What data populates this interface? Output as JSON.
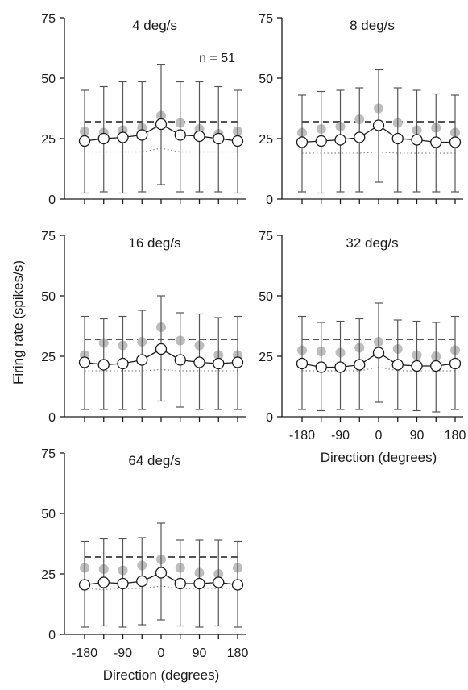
{
  "chart_data": [
    {
      "type": "line",
      "title": "4 deg/s",
      "annotation": "n = 51",
      "x": [
        -180,
        -135,
        -90,
        -45,
        0,
        45,
        90,
        135,
        180
      ],
      "ylim": [
        0,
        75
      ],
      "yticks": [
        0,
        25,
        50,
        75
      ],
      "series": [
        {
          "values": [
            24,
            25,
            25.5,
            26.5,
            31,
            26.5,
            26,
            25,
            24
          ],
          "err_low": [
            2.5,
            3,
            2.5,
            3,
            6,
            3,
            3,
            3,
            2.5
          ],
          "err_high": [
            45,
            46.5,
            48.5,
            48.5,
            55.5,
            48.5,
            48.5,
            46.5,
            45
          ]
        },
        {
          "values": [
            28,
            27.5,
            28.5,
            29.5,
            34.5,
            31.5,
            29,
            27,
            28
          ]
        },
        {
          "values": [
            32,
            32,
            32,
            32,
            32,
            32,
            32,
            32,
            32
          ]
        },
        {
          "values": [
            19.5,
            19.5,
            19.5,
            19.5,
            21,
            19.5,
            19.5,
            19.5,
            19.5
          ]
        }
      ]
    },
    {
      "type": "line",
      "title": "8 deg/s",
      "x": [
        -180,
        -135,
        -90,
        -45,
        0,
        45,
        90,
        135,
        180
      ],
      "ylim": [
        0,
        75
      ],
      "yticks": [
        0,
        25,
        50,
        75
      ],
      "series": [
        {
          "values": [
            23.5,
            24,
            24.5,
            25.5,
            30.5,
            25,
            24.5,
            23.5,
            23.5
          ],
          "err_low": [
            3,
            2.5,
            3,
            3,
            7,
            3,
            3,
            3,
            3
          ],
          "err_high": [
            43,
            44.5,
            45,
            46,
            53.5,
            46,
            45,
            43.5,
            43
          ]
        },
        {
          "values": [
            27.5,
            29,
            30,
            33,
            37.5,
            31.5,
            28.5,
            29.5,
            27.5
          ]
        },
        {
          "values": [
            32,
            32,
            32,
            32,
            32,
            32,
            32,
            32,
            32
          ]
        },
        {
          "values": [
            19,
            19,
            19,
            19,
            19.5,
            19,
            19,
            19,
            19
          ]
        }
      ]
    },
    {
      "type": "line",
      "title": "16 deg/s",
      "x": [
        -180,
        -135,
        -90,
        -45,
        0,
        45,
        90,
        135,
        180
      ],
      "ylim": [
        0,
        75
      ],
      "yticks": [
        0,
        25,
        50,
        75
      ],
      "series": [
        {
          "values": [
            22.5,
            21.5,
            22,
            23.5,
            28,
            23.5,
            22.5,
            22,
            22.5
          ],
          "err_low": [
            3,
            3,
            3,
            3,
            6.5,
            4,
            3,
            3,
            3
          ],
          "err_high": [
            41.5,
            40.5,
            41.5,
            44,
            50,
            43,
            42.5,
            41,
            41.5
          ]
        },
        {
          "values": [
            25.5,
            30.5,
            29.5,
            31,
            37,
            31.5,
            29.5,
            25.5,
            25.5
          ]
        },
        {
          "values": [
            32,
            32,
            32,
            32,
            32,
            32,
            32,
            32,
            32
          ]
        },
        {
          "values": [
            19,
            19,
            19,
            19,
            19.5,
            19,
            19,
            19,
            19
          ]
        }
      ]
    },
    {
      "type": "line",
      "title": "32 deg/s",
      "x": [
        -180,
        -135,
        -90,
        -45,
        0,
        45,
        90,
        135,
        180
      ],
      "ylim": [
        0,
        75
      ],
      "yticks": [
        0,
        25,
        50,
        75
      ],
      "series": [
        {
          "values": [
            22,
            20.5,
            20.5,
            21.5,
            26.5,
            21.5,
            21,
            21,
            22
          ],
          "err_low": [
            3,
            2.5,
            3,
            3,
            6,
            3,
            2.5,
            2,
            3
          ],
          "err_high": [
            41.5,
            39,
            39.5,
            40.5,
            47,
            40,
            39.5,
            39,
            41.5
          ]
        },
        {
          "values": [
            27.5,
            27,
            26.5,
            28.5,
            31,
            28,
            25.5,
            25,
            27.5
          ]
        },
        {
          "values": [
            32,
            32,
            32,
            32,
            32,
            32,
            32,
            32,
            32
          ]
        },
        {
          "values": [
            19,
            19,
            19,
            19,
            20.5,
            19,
            19,
            19,
            19
          ]
        }
      ]
    },
    {
      "type": "line",
      "title": "64 deg/s",
      "x": [
        -180,
        -135,
        -90,
        -45,
        0,
        45,
        90,
        135,
        180
      ],
      "ylim": [
        0,
        75
      ],
      "yticks": [
        0,
        25,
        50,
        75
      ],
      "series": [
        {
          "values": [
            20.5,
            21.5,
            21,
            22,
            25.5,
            21,
            21,
            21.5,
            20.5
          ],
          "err_low": [
            3,
            3.5,
            3,
            4,
            6,
            3.5,
            3,
            3.5,
            3
          ],
          "err_high": [
            38.5,
            39.5,
            39.5,
            40,
            46,
            39,
            39,
            39,
            38.5
          ]
        },
        {
          "values": [
            27.5,
            27,
            26.5,
            28.5,
            31,
            27.5,
            25.5,
            25,
            27.5
          ]
        },
        {
          "values": [
            32,
            32,
            32,
            32,
            32,
            32,
            32,
            32,
            32
          ]
        },
        {
          "values": [
            19,
            18.5,
            19,
            19,
            20,
            19,
            19,
            19,
            19
          ]
        }
      ]
    }
  ],
  "ylabel": "Firing rate (spikes/s)",
  "xlabel": "Direction (degrees)",
  "xticks": [
    -180,
    -90,
    0,
    90,
    180
  ],
  "colors": {
    "axis": "#1a1a1a",
    "gray_markers": "#bdbdbd",
    "dotted": "#888888",
    "marker_fill": "#ffffff"
  }
}
